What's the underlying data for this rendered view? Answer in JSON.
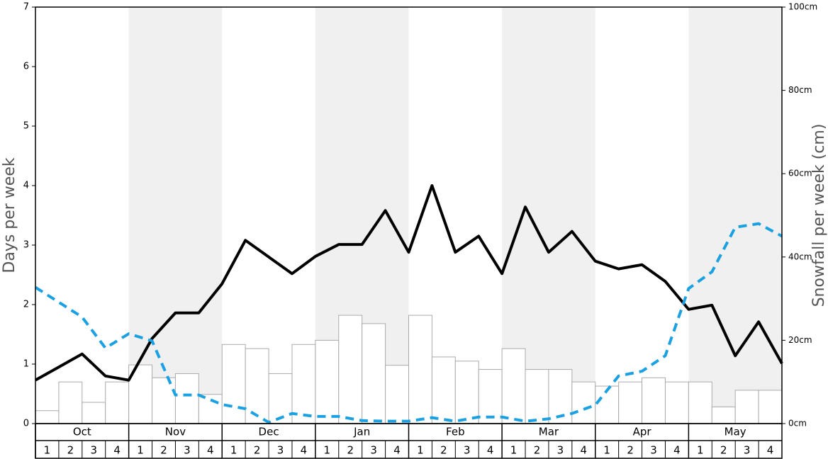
{
  "chart_data": {
    "type": "bar-line",
    "y_label": "Days per week",
    "y2_label": "Snowfall per week (cm)",
    "months": [
      "Oct",
      "Nov",
      "Dec",
      "Jan",
      "Feb",
      "Mar",
      "Apr",
      "May"
    ],
    "weeks": [
      "1",
      "2",
      "3",
      "4"
    ],
    "shaded_color": "#f0f0f0",
    "ylim": [
      0,
      7
    ],
    "yticks": [
      0,
      1,
      2,
      3,
      4,
      5,
      6,
      7
    ],
    "y2lim": [
      0,
      100
    ],
    "y2ticks": [
      {
        "value": 0,
        "label": "0cm"
      },
      {
        "value": 20,
        "label": "20cm"
      },
      {
        "value": 40,
        "label": "40cm"
      },
      {
        "value": 60,
        "label": "60cm"
      },
      {
        "value": 80,
        "label": "80cm"
      },
      {
        "value": 100,
        "label": "100cm"
      }
    ],
    "bars": {
      "axis": "y2",
      "color": "#ffffff",
      "edge": "#aaaaaa",
      "values": [
        3.1,
        10,
        5.1,
        10,
        14.1,
        11,
        12,
        7,
        19,
        18,
        12,
        19,
        20,
        26,
        24,
        14,
        26,
        16,
        15,
        13,
        18,
        13,
        13,
        10,
        9,
        10,
        11,
        10,
        10,
        4,
        8,
        8
      ]
    },
    "series": [
      {
        "color": "#000000",
        "dash": false,
        "values": [
          0.73,
          0.95,
          1.17,
          0.8,
          0.73,
          1.43,
          1.86,
          1.86,
          2.35,
          3.08,
          2.8,
          2.52,
          2.81,
          3.01,
          3.01,
          3.58,
          2.88,
          4.0,
          2.88,
          3.15,
          2.52,
          3.64,
          2.88,
          3.23,
          2.73,
          2.6,
          2.67,
          2.39,
          1.92,
          1.99,
          1.14,
          1.71,
          1.01
        ]
      },
      {
        "color": "#1ba1e2",
        "dash": true,
        "values": [
          2.29,
          2.04,
          1.79,
          1.27,
          1.51,
          1.39,
          0.48,
          0.48,
          0.32,
          0.25,
          0.02,
          0.17,
          0.12,
          0.12,
          0.05,
          0.04,
          0.04,
          0.1,
          0.04,
          0.11,
          0.11,
          0.04,
          0.08,
          0.17,
          0.31,
          0.8,
          0.88,
          1.14,
          2.27,
          2.55,
          3.3,
          3.36,
          3.15
        ]
      }
    ]
  }
}
